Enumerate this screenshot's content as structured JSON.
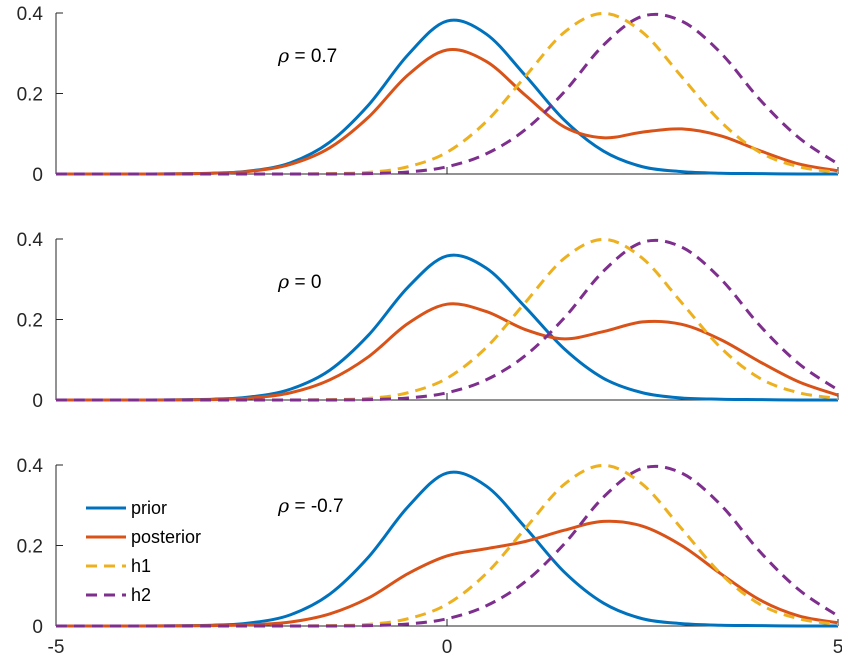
{
  "chart_data": [
    {
      "type": "line",
      "annotation": "ρ = 0.7",
      "xlim": [
        -5,
        5
      ],
      "ylim": [
        0,
        0.4
      ],
      "yticks": [
        "0",
        "0.2",
        "0.4"
      ],
      "xticks": [],
      "legend": false,
      "grid": false,
      "series": [
        {
          "name": "prior",
          "color": "#0072BD",
          "style": "solid",
          "x": [
            -5,
            -4,
            -3,
            -2.5,
            -2,
            -1.5,
            -1,
            -0.5,
            0,
            0.5,
            1,
            1.5,
            2,
            2.5,
            3,
            3.5,
            4,
            4.5,
            5
          ],
          "y": [
            0,
            0,
            0.002,
            0.008,
            0.028,
            0.079,
            0.172,
            0.296,
            0.38,
            0.348,
            0.245,
            0.134,
            0.057,
            0.018,
            0.006,
            0.002,
            0.001,
            0,
            0
          ]
        },
        {
          "name": "posterior",
          "color": "#D95319",
          "style": "solid",
          "x": [
            -5,
            -4,
            -3,
            -2.5,
            -2,
            -1.5,
            -1,
            -0.5,
            0,
            0.5,
            1,
            1.5,
            2,
            2.5,
            3,
            3.5,
            4,
            4.5,
            5
          ],
          "y": [
            0,
            0,
            0.002,
            0.007,
            0.024,
            0.065,
            0.142,
            0.246,
            0.308,
            0.28,
            0.196,
            0.117,
            0.09,
            0.104,
            0.112,
            0.095,
            0.058,
            0.025,
            0.008
          ]
        },
        {
          "name": "h1",
          "color": "#EDB120",
          "style": "dashed",
          "x": [
            -5,
            -4,
            -3,
            -2.5,
            -2,
            -1.5,
            -1,
            -0.5,
            0,
            0.5,
            1,
            1.5,
            2,
            2.5,
            3,
            3.5,
            4,
            4.5,
            5
          ],
          "y": [
            0,
            0,
            0,
            0,
            0,
            0.001,
            0.004,
            0.018,
            0.054,
            0.13,
            0.242,
            0.352,
            0.399,
            0.352,
            0.242,
            0.13,
            0.054,
            0.018,
            0.004
          ]
        },
        {
          "name": "h2",
          "color": "#7E2F8E",
          "style": "dashed",
          "x": [
            -5,
            -4,
            -3,
            -2.5,
            -2,
            -1.5,
            -1,
            -0.5,
            0,
            0.5,
            1,
            1.5,
            2,
            2.5,
            3,
            3.5,
            4,
            4.5,
            5
          ],
          "y": [
            0,
            0,
            0,
            0,
            0,
            0,
            0.001,
            0.005,
            0.018,
            0.05,
            0.11,
            0.204,
            0.32,
            0.392,
            0.38,
            0.301,
            0.185,
            0.09,
            0.025
          ]
        }
      ]
    },
    {
      "type": "line",
      "annotation": "ρ = 0",
      "xlim": [
        -5,
        5
      ],
      "ylim": [
        0,
        0.4
      ],
      "yticks": [
        "0",
        "0.2",
        "0.4"
      ],
      "xticks": [],
      "legend": false,
      "grid": false,
      "series": [
        {
          "name": "prior",
          "color": "#0072BD",
          "style": "solid",
          "x": [
            -5,
            -4,
            -3,
            -2.5,
            -2,
            -1.5,
            -1,
            -0.5,
            0,
            0.5,
            1,
            1.5,
            2,
            2.5,
            3,
            3.5,
            4,
            4.5,
            5
          ],
          "y": [
            0,
            0,
            0.002,
            0.008,
            0.027,
            0.074,
            0.162,
            0.28,
            0.358,
            0.328,
            0.231,
            0.127,
            0.054,
            0.018,
            0.005,
            0.002,
            0.001,
            0,
            0
          ]
        },
        {
          "name": "posterior",
          "color": "#D95319",
          "style": "solid",
          "x": [
            -5,
            -4,
            -3,
            -2.5,
            -2,
            -1.5,
            -1,
            -0.5,
            0,
            0.5,
            1,
            1.5,
            2,
            2.5,
            3,
            3.5,
            4,
            4.5,
            5
          ],
          "y": [
            0,
            0,
            0.001,
            0.005,
            0.018,
            0.05,
            0.108,
            0.19,
            0.238,
            0.22,
            0.175,
            0.152,
            0.17,
            0.194,
            0.188,
            0.15,
            0.095,
            0.045,
            0.012
          ]
        },
        {
          "name": "h1",
          "color": "#EDB120",
          "style": "dashed",
          "x": [
            -5,
            -4,
            -3,
            -2.5,
            -2,
            -1.5,
            -1,
            -0.5,
            0,
            0.5,
            1,
            1.5,
            2,
            2.5,
            3,
            3.5,
            4,
            4.5,
            5
          ],
          "y": [
            0,
            0,
            0,
            0,
            0,
            0.001,
            0.004,
            0.018,
            0.054,
            0.13,
            0.242,
            0.352,
            0.399,
            0.352,
            0.242,
            0.13,
            0.054,
            0.018,
            0.004
          ]
        },
        {
          "name": "h2",
          "color": "#7E2F8E",
          "style": "dashed",
          "x": [
            -5,
            -4,
            -3,
            -2.5,
            -2,
            -1.5,
            -1,
            -0.5,
            0,
            0.5,
            1,
            1.5,
            2,
            2.5,
            3,
            3.5,
            4,
            4.5,
            5
          ],
          "y": [
            0,
            0,
            0,
            0,
            0,
            0,
            0.001,
            0.005,
            0.018,
            0.05,
            0.11,
            0.204,
            0.32,
            0.392,
            0.38,
            0.301,
            0.185,
            0.09,
            0.025
          ]
        }
      ]
    },
    {
      "type": "line",
      "annotation": "ρ = -0.7",
      "xlim": [
        -5,
        5
      ],
      "ylim": [
        0,
        0.4
      ],
      "yticks": [
        "0",
        "0.2",
        "0.4"
      ],
      "xticks": [
        "-5",
        "0",
        "5"
      ],
      "legend": true,
      "legend_position": "left",
      "grid": false,
      "series": [
        {
          "name": "prior",
          "color": "#0072BD",
          "style": "solid",
          "x": [
            -5,
            -4,
            -3,
            -2.5,
            -2,
            -1.5,
            -1,
            -0.5,
            0,
            0.5,
            1,
            1.5,
            2,
            2.5,
            3,
            3.5,
            4,
            4.5,
            5
          ],
          "y": [
            0,
            0,
            0.002,
            0.008,
            0.028,
            0.079,
            0.172,
            0.296,
            0.38,
            0.348,
            0.245,
            0.134,
            0.057,
            0.018,
            0.006,
            0.002,
            0.001,
            0,
            0
          ]
        },
        {
          "name": "posterior",
          "color": "#D95319",
          "style": "solid",
          "x": [
            -5,
            -4,
            -3,
            -2.5,
            -2,
            -1.5,
            -1,
            -0.5,
            0,
            0.5,
            1,
            1.5,
            2,
            2.5,
            3,
            3.5,
            4,
            4.5,
            5
          ],
          "y": [
            0,
            0,
            0.001,
            0.003,
            0.01,
            0.03,
            0.07,
            0.13,
            0.174,
            0.192,
            0.21,
            0.238,
            0.26,
            0.248,
            0.2,
            0.13,
            0.065,
            0.025,
            0.008
          ]
        },
        {
          "name": "h1",
          "color": "#EDB120",
          "style": "dashed",
          "x": [
            -5,
            -4,
            -3,
            -2.5,
            -2,
            -1.5,
            -1,
            -0.5,
            0,
            0.5,
            1,
            1.5,
            2,
            2.5,
            3,
            3.5,
            4,
            4.5,
            5
          ],
          "y": [
            0,
            0,
            0,
            0,
            0,
            0.001,
            0.004,
            0.018,
            0.054,
            0.13,
            0.242,
            0.352,
            0.399,
            0.352,
            0.242,
            0.13,
            0.054,
            0.018,
            0.004
          ]
        },
        {
          "name": "h2",
          "color": "#7E2F8E",
          "style": "dashed",
          "x": [
            -5,
            -4,
            -3,
            -2.5,
            -2,
            -1.5,
            -1,
            -0.5,
            0,
            0.5,
            1,
            1.5,
            2,
            2.5,
            3,
            3.5,
            4,
            4.5,
            5
          ],
          "y": [
            0,
            0,
            0,
            0,
            0,
            0,
            0.001,
            0.005,
            0.018,
            0.05,
            0.11,
            0.204,
            0.32,
            0.392,
            0.38,
            0.301,
            0.185,
            0.09,
            0.025
          ]
        }
      ]
    }
  ]
}
